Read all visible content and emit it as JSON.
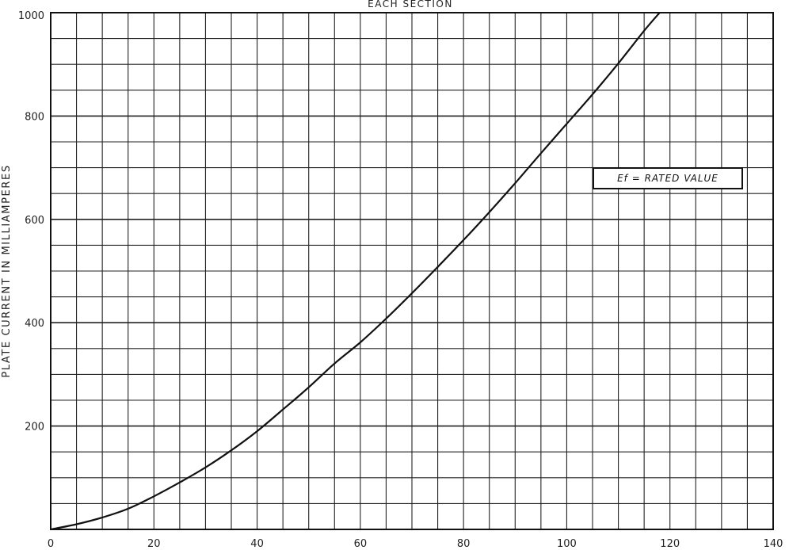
{
  "chart_data": {
    "type": "line",
    "title": "EACH SECTION",
    "xlabel": "",
    "ylabel": "PLATE CURRENT IN MILLIAMPERES",
    "xlim": [
      0,
      140
    ],
    "ylim": [
      0,
      1000
    ],
    "grid": true,
    "x_ticks": [
      "0",
      "20",
      "40",
      "60",
      "80",
      "100",
      "120",
      "140"
    ],
    "y_ticks": [
      "200",
      "400",
      "600",
      "800",
      "1000"
    ],
    "annotation": "Ef = RATED VALUE",
    "series": [
      {
        "x": [
          0,
          5,
          10,
          15,
          20,
          25,
          30,
          35,
          40,
          45,
          50,
          55,
          60,
          65,
          70,
          75,
          80,
          85,
          90,
          95,
          100,
          105,
          110,
          115,
          118
        ],
        "values": [
          0,
          10,
          23,
          40,
          64,
          91,
          120,
          153,
          190,
          232,
          275,
          321,
          362,
          408,
          457,
          508,
          560,
          614,
          670,
          728,
          785,
          842,
          902,
          965,
          1000
        ]
      }
    ]
  }
}
